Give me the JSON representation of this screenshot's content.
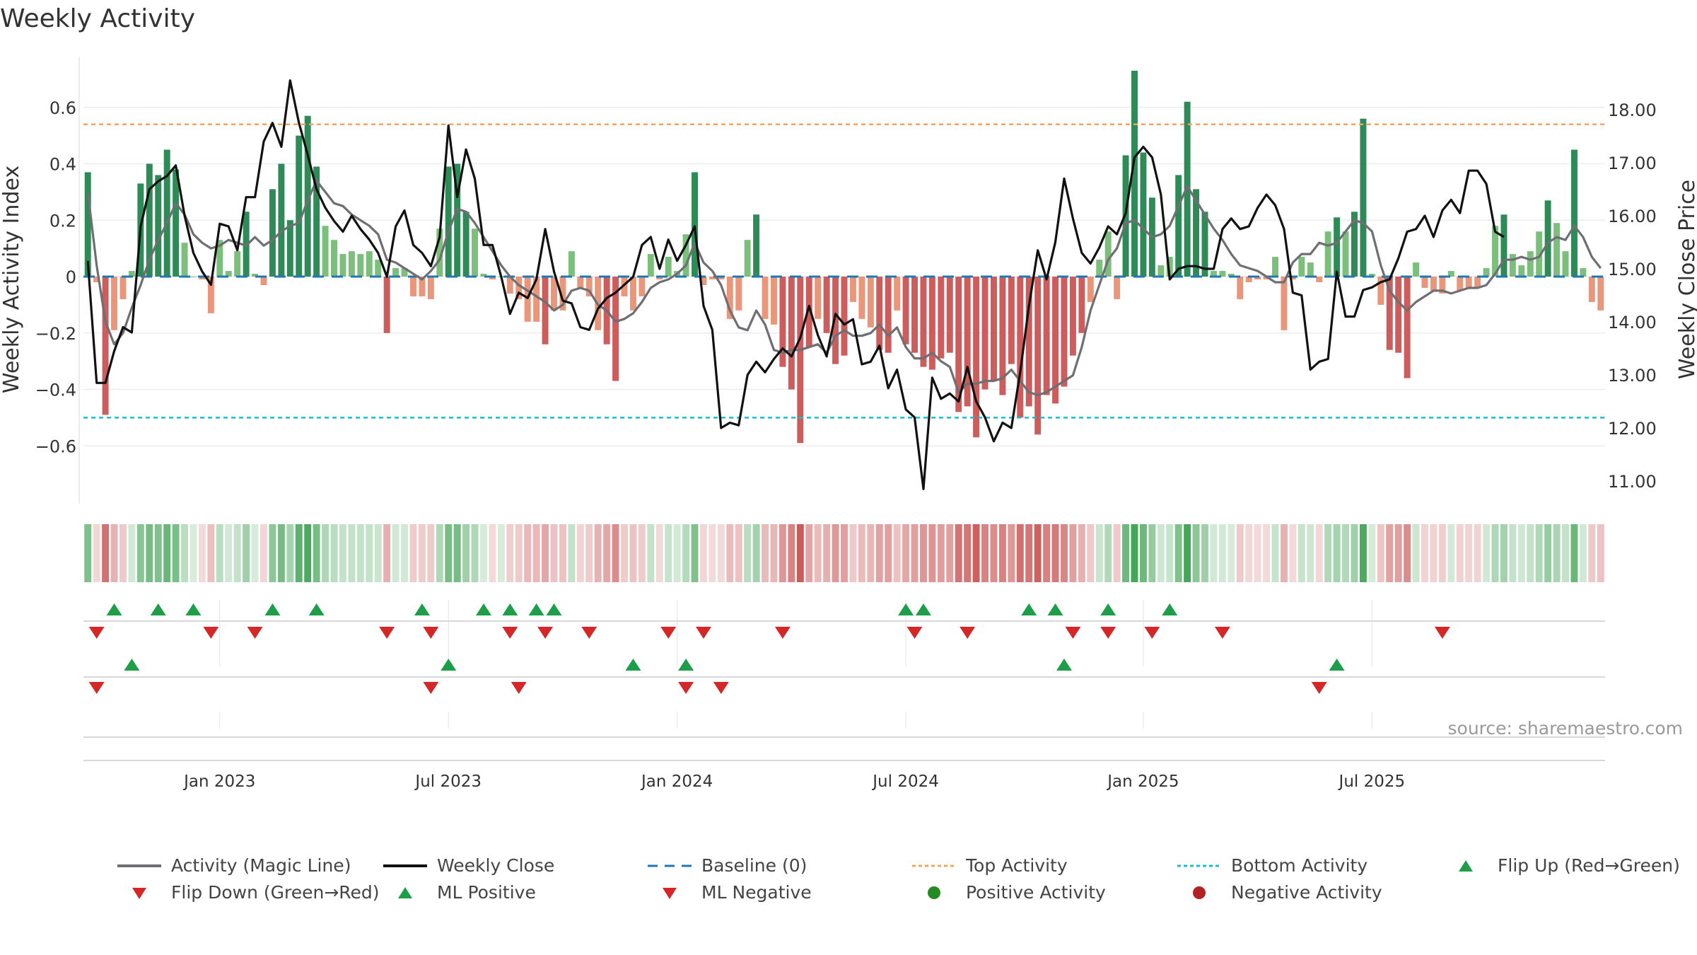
{
  "title": "Weekly Activity",
  "source": "source: sharemaestro.com",
  "colors": {
    "pos_dark": "#2e8b57",
    "pos_light": "#7cbf7c",
    "neg_dark": "#cd5c5c",
    "neg_light": "#e9967a",
    "magic": "#6e6e73",
    "close": "#111111",
    "baseline": "#1f77b4",
    "top": "#f4a460",
    "bottom": "#17becf",
    "flip_up": "#1e9e48",
    "flip_down": "#d62728",
    "pos_dot": "#228b22",
    "neg_dot": "#b22222"
  },
  "legend": [
    {
      "label": "Activity (Magic Line)",
      "key": "magic"
    },
    {
      "label": "Weekly Close",
      "key": "close"
    },
    {
      "label": "Baseline (0)",
      "key": "baseline"
    },
    {
      "label": "Top Activity",
      "key": "top"
    },
    {
      "label": "Bottom Activity",
      "key": "bottom"
    },
    {
      "label": "Flip Up (Red→Green)",
      "key": "flip_up"
    },
    {
      "label": "Flip Down (Green→Red)",
      "key": "flip_down"
    },
    {
      "label": "ML Positive",
      "key": "ml_pos"
    },
    {
      "label": "ML Negative",
      "key": "ml_neg"
    },
    {
      "label": "Positive Activity",
      "key": "pos_dot"
    },
    {
      "label": "Negative Activity",
      "key": "neg_dot"
    }
  ],
  "chart_data": {
    "type": "bar",
    "title": "Weekly Activity",
    "ylabel": "Weekly Activity Index",
    "y2label": "Weekly Close Price",
    "ylim": [
      -0.8,
      0.78
    ],
    "y2lim": [
      10.6,
      19.0
    ],
    "yticks": [
      -0.6,
      -0.4,
      -0.2,
      0,
      0.2,
      0.4,
      0.6
    ],
    "ytick_labels": [
      "−0.6",
      "−0.4",
      "−0.2",
      "0",
      "0.2",
      "0.4",
      "0.6"
    ],
    "y2ticks": [
      11,
      12,
      13,
      14,
      15,
      16,
      17,
      18
    ],
    "y2tick_labels": [
      "11.00",
      "12.00",
      "13.00",
      "14.00",
      "15.00",
      "16.00",
      "17.00",
      "18.00"
    ],
    "xticks": [
      {
        "label": "Jan 2023",
        "idx": 15
      },
      {
        "label": "Jul 2023",
        "idx": 41
      },
      {
        "label": "Jan 2024",
        "idx": 67
      },
      {
        "label": "Jul 2024",
        "idx": 93
      },
      {
        "label": "Jan 2025",
        "idx": 120
      },
      {
        "label": "Jul 2025",
        "idx": 146
      }
    ],
    "top_activity": 0.54,
    "bottom_activity": -0.5,
    "activity": [
      0.37,
      -0.02,
      -0.49,
      -0.19,
      -0.08,
      0.02,
      0.33,
      0.4,
      0.36,
      0.45,
      0.38,
      0.12,
      0,
      -0.01,
      -0.13,
      0.13,
      0.02,
      0.09,
      0.23,
      0.01,
      -0.03,
      0.31,
      0.4,
      0.2,
      0.5,
      0.57,
      0.39,
      0.18,
      0.13,
      0.08,
      0.09,
      0.08,
      0.09,
      0.06,
      -0.2,
      0.03,
      0.03,
      -0.07,
      -0.07,
      -0.08,
      0.17,
      0.39,
      0.4,
      0.23,
      0.17,
      0.01,
      -0.01,
      0,
      -0.06,
      -0.08,
      -0.16,
      -0.16,
      -0.24,
      -0.12,
      -0.12,
      0.09,
      -0.04,
      -0.07,
      -0.19,
      -0.24,
      -0.37,
      -0.07,
      -0.12,
      -0.07,
      0.08,
      -0.01,
      0.07,
      0.02,
      0.15,
      0.37,
      -0.03,
      -0.01,
      -0.01,
      -0.15,
      -0.12,
      0.13,
      0.22,
      -0.15,
      -0.17,
      -0.32,
      -0.4,
      -0.59,
      -0.25,
      -0.15,
      -0.2,
      -0.31,
      -0.28,
      -0.09,
      -0.15,
      -0.18,
      -0.26,
      -0.27,
      -0.12,
      -0.24,
      -0.27,
      -0.32,
      -0.33,
      -0.29,
      -0.27,
      -0.48,
      -0.46,
      -0.57,
      -0.4,
      -0.37,
      -0.42,
      -0.31,
      -0.5,
      -0.46,
      -0.56,
      -0.42,
      -0.45,
      -0.39,
      -0.28,
      -0.2,
      -0.09,
      0.06,
      0.16,
      -0.08,
      0.43,
      0.73,
      0.44,
      0.28,
      0.04,
      0.07,
      0.36,
      0.62,
      0.31,
      0.23,
      0.02,
      0.02,
      0.01,
      -0.08,
      -0.02,
      -0.01,
      -0.01,
      0.07,
      -0.19,
      -0.01,
      0.07,
      0.05,
      -0.02,
      0.16,
      0.21,
      0.16,
      0.23,
      0.56,
      0.01,
      -0.1,
      -0.26,
      -0.27,
      -0.36,
      0.05,
      -0.04,
      -0.05,
      -0.06,
      0.02,
      -0.05,
      -0.04,
      -0.04,
      0.03,
      0.18,
      0.22,
      0.08,
      0.04,
      0.09,
      0.16,
      0.27,
      0.19,
      0.09,
      0.45,
      0.03,
      -0.09,
      -0.12
    ],
    "magic_line": [
      0.3,
      0.04,
      -0.16,
      -0.24,
      -0.2,
      -0.11,
      -0.03,
      0.06,
      0.13,
      0.19,
      0.26,
      0.22,
      0.15,
      0.12,
      0.1,
      0.11,
      0.13,
      0.12,
      0.11,
      0.14,
      0.11,
      0.13,
      0.16,
      0.18,
      0.19,
      0.27,
      0.34,
      0.3,
      0.26,
      0.25,
      0.22,
      0.2,
      0.18,
      0.15,
      0.06,
      0.05,
      0.03,
      0.01,
      -0.01,
      0.02,
      0.06,
      0.16,
      0.24,
      0.23,
      0.19,
      0.14,
      0.09,
      0.04,
      0.0,
      -0.03,
      -0.05,
      -0.07,
      -0.09,
      -0.12,
      -0.1,
      -0.05,
      -0.04,
      -0.05,
      -0.1,
      -0.12,
      -0.16,
      -0.15,
      -0.13,
      -0.09,
      -0.04,
      -0.02,
      -0.01,
      0.01,
      0.04,
      0.12,
      0.05,
      0.02,
      -0.03,
      -0.12,
      -0.18,
      -0.19,
      -0.12,
      -0.17,
      -0.26,
      -0.27,
      -0.26,
      -0.26,
      -0.25,
      -0.24,
      -0.27,
      -0.21,
      -0.19,
      -0.21,
      -0.21,
      -0.2,
      -0.17,
      -0.21,
      -0.18,
      -0.25,
      -0.29,
      -0.29,
      -0.27,
      -0.3,
      -0.32,
      -0.41,
      -0.38,
      -0.38,
      -0.37,
      -0.37,
      -0.36,
      -0.33,
      -0.37,
      -0.41,
      -0.42,
      -0.41,
      -0.39,
      -0.37,
      -0.35,
      -0.25,
      -0.12,
      -0.03,
      0.06,
      0.1,
      0.19,
      0.2,
      0.17,
      0.14,
      0.15,
      0.18,
      0.25,
      0.32,
      0.27,
      0.22,
      0.17,
      0.13,
      0.08,
      0.04,
      0.03,
      0.02,
      0.0,
      -0.02,
      -0.02,
      0.05,
      0.08,
      0.08,
      0.12,
      0.11,
      0.12,
      0.16,
      0.2,
      0.19,
      0.16,
      0.04,
      -0.05,
      -0.09,
      -0.12,
      -0.09,
      -0.07,
      -0.05,
      -0.05,
      -0.06,
      -0.05,
      -0.04,
      -0.04,
      -0.03,
      0.01,
      0.06,
      0.06,
      0.07,
      0.06,
      0.07,
      0.12,
      0.14,
      0.13,
      0.18,
      0.14,
      0.07,
      0.03
    ],
    "weekly_close": [
      15.15,
      12.85,
      12.85,
      13.45,
      13.9,
      13.8,
      15.8,
      16.5,
      16.65,
      16.75,
      16.95,
      16.0,
      15.3,
      14.95,
      14.7,
      15.85,
      15.8,
      15.35,
      16.35,
      16.35,
      17.4,
      17.75,
      17.3,
      18.55,
      17.75,
      17.15,
      16.5,
      16.15,
      15.9,
      15.7,
      16.0,
      15.75,
      15.55,
      15.3,
      14.85,
      15.8,
      16.1,
      15.45,
      15.3,
      15.05,
      15.6,
      17.7,
      16.35,
      17.25,
      16.7,
      15.45,
      15.45,
      14.85,
      14.15,
      14.55,
      14.45,
      14.8,
      15.75,
      14.95,
      14.4,
      14.35,
      13.9,
      13.85,
      14.25,
      14.45,
      14.55,
      14.7,
      14.85,
      15.45,
      15.6,
      15.0,
      15.55,
      15.15,
      15.45,
      15.8,
      14.3,
      13.85,
      12.0,
      12.1,
      12.05,
      13.0,
      13.25,
      13.05,
      13.3,
      13.5,
      13.35,
      13.7,
      14.3,
      13.75,
      13.35,
      14.15,
      13.95,
      14.05,
      13.2,
      13.25,
      13.55,
      12.75,
      13.1,
      12.35,
      12.2,
      10.85,
      12.95,
      12.55,
      12.65,
      12.5,
      13.15,
      12.5,
      12.2,
      11.75,
      12.1,
      12.0,
      13.05,
      14.3,
      15.35,
      14.8,
      15.5,
      16.7,
      15.95,
      15.3,
      15.1,
      15.4,
      15.8,
      15.65,
      16.05,
      17.1,
      17.3,
      17.1,
      16.4,
      14.8,
      15.0,
      15.05,
      15.05,
      15.0,
      15.0,
      15.75,
      15.95,
      15.75,
      15.8,
      16.15,
      16.4,
      16.2,
      15.75,
      14.55,
      14.5,
      13.1,
      13.25,
      13.3,
      14.95,
      14.1,
      14.1,
      14.6,
      14.65,
      14.75,
      14.8,
      15.2,
      15.7,
      15.75,
      16.0,
      15.6,
      16.1,
      16.3,
      16.05,
      16.85,
      16.85,
      16.6,
      15.7,
      15.6
    ],
    "flip_up": [
      3,
      8,
      12,
      21,
      26,
      38,
      45,
      48,
      51,
      53,
      93,
      95,
      107,
      110,
      116,
      123
    ],
    "flip_down": [
      1,
      14,
      19,
      34,
      39,
      48,
      52,
      57,
      66,
      70,
      79,
      94,
      100,
      112,
      116,
      121,
      129,
      154
    ],
    "ml_pos": [
      5,
      41,
      62,
      68,
      111,
      142
    ],
    "ml_neg": [
      1,
      39,
      49,
      68,
      72,
      140
    ]
  }
}
